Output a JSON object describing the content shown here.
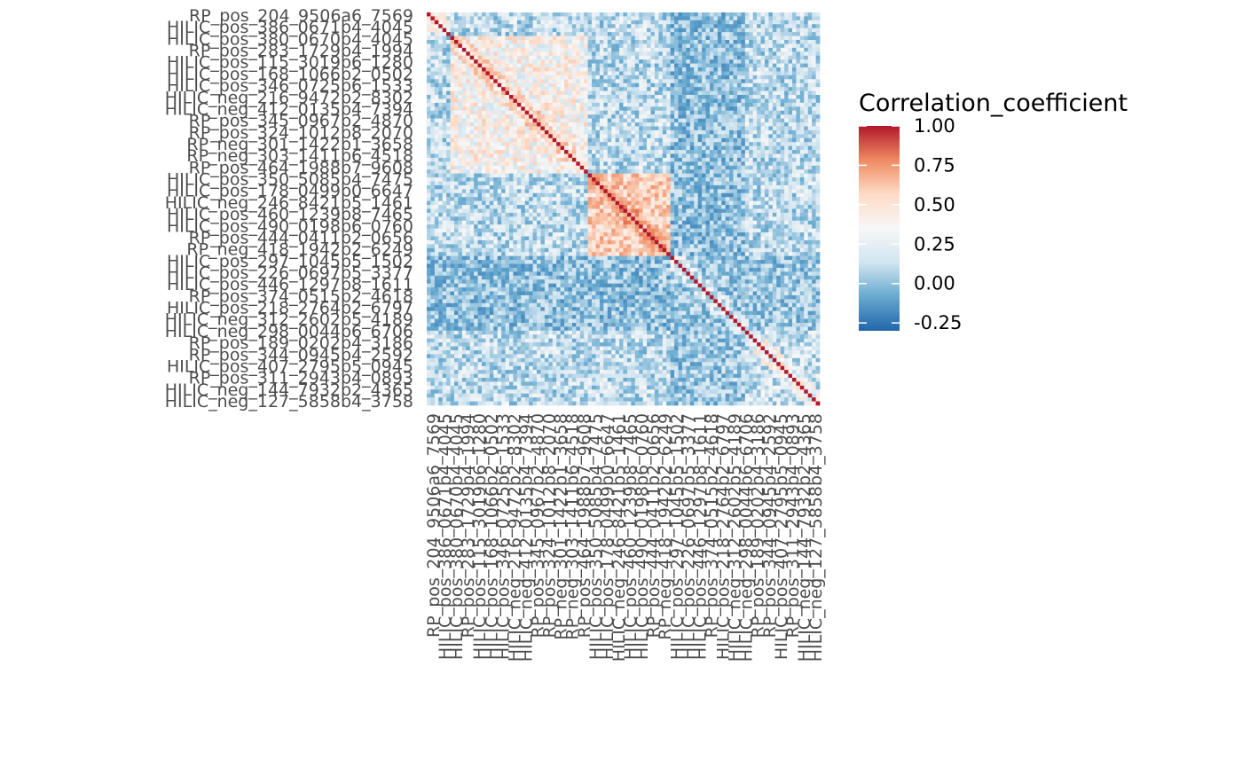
{
  "chart_data": {
    "type": "heatmap",
    "matrix_size": 100,
    "visible_row_labels": [
      "RP_pos_204_9506a6_7569",
      "HILIC_pos_386_0671b4_4045",
      "HILIC_pos_380_0670b4_4045",
      "RP_pos_283_1729b4_1994",
      "HILIC_pos_115_3019b6_1280",
      "HILIC_pos_168_1066b2_0502",
      "HILIC_pos_346_0725b6_1533",
      "HILIC_neg_216_9472b2_8302",
      "HILIC_neg_412_0135b4_7394",
      "RP_pos_345_0967b2_4870",
      "RP_pos_324_1012b8_2070",
      "RP_neg_301_1422b1_3658",
      "RP_neg_303_1411b6_4518",
      "RP_pos_464_1988b7_9608",
      "HILIC_pos_350_5085b4_7475",
      "HILIC_pos_178_0499b0_6647",
      "HILIC_neg_246_8421b5_1461",
      "HILIC_pos_460_1239b8_7465",
      "HILIC_pos_490_0198b6_0760",
      "RP_pos_444_0411b2_0656",
      "RP_neg_418_1942b2_6249",
      "HILIC_pos_297_1045b5_1502",
      "HILIC_pos_226_0697b5_3377",
      "HILIC_pos_446_1297b8_1611",
      "RP_pos_374_0515b2_4618",
      "HILIC_pos_218_2764b2_6797",
      "HILIC_neg_312_2602b5_4189",
      "HILIC_neg_298_0044b6_6706",
      "RP_pos_189_0202b4_3186",
      "RP_pos_344_0945b4_2592",
      "HILIC_pos_407_2795b5_0945",
      "RP_pos_311_2943b4_0893",
      "HILIC_neg_144_7932b2_4365",
      "HILIC_neg_127_5858b4_3758"
    ],
    "visible_col_labels": [
      "RP_pos_204_9506a6_7569",
      "HILIC_pos_386_0671b4_4045",
      "HILIC_pos_380_0670b4_4045",
      "RP_pos_283_1729b4_1994",
      "HILIC_pos_115_3019b6_1280",
      "HILIC_pos_168_1066b2_0502",
      "HILIC_pos_346_0725b6_1533",
      "HILIC_neg_216_9472b2_8302",
      "HILIC_neg_412_0135b4_7394",
      "RP_pos_345_0967b2_4870",
      "RP_pos_324_1012b8_2070",
      "RP_neg_301_1422b1_3658",
      "RP_neg_303_1411b6_4518",
      "RP_pos_464_1988b7_9608",
      "HILIC_pos_350_5085b4_7475",
      "HILIC_pos_178_0499b0_6647",
      "HILIC_neg_246_8421b5_1461",
      "HILIC_pos_460_1239b8_7465",
      "HILIC_pos_490_0198b6_0760",
      "RP_pos_444_0411b2_0656",
      "RP_neg_418_1942b2_6249",
      "HILIC_pos_297_1045b5_1502",
      "HILIC_pos_226_0697b5_3377",
      "HILIC_pos_446_1297b8_1611",
      "RP_pos_374_0515b2_4618",
      "HILIC_pos_218_2764b2_6797",
      "HILIC_neg_312_2602b5_4189",
      "HILIC_neg_298_0044b6_6706",
      "RP_pos_189_0202b4_3186",
      "RP_pos_344_0945b4_2592",
      "HILIC_pos_407_2795b5_0945",
      "RP_pos_311_2943b4_0893",
      "HILIC_neg_144_7932b2_4365",
      "HILIC_neg_127_5858b4_3758"
    ],
    "blocks": [
      {
        "from": 0,
        "to": 6,
        "base": 0.22
      },
      {
        "from": 6,
        "to": 41,
        "base": 0.32
      },
      {
        "from": 41,
        "to": 62,
        "base": 0.5
      },
      {
        "from": 62,
        "to": 100,
        "base": 0.15
      }
    ],
    "cross_block_base": 0.12,
    "weak_columns": [
      62,
      63,
      64,
      65,
      66,
      67,
      68,
      69,
      70,
      71,
      72,
      73,
      74,
      75,
      76,
      77,
      78,
      79,
      80
    ],
    "diagonal_value": 1.0,
    "legend": {
      "title": "Correlation_coefficient",
      "breaks": [
        1.0,
        0.75,
        0.5,
        0.25,
        0.0,
        -0.25
      ],
      "break_labels": [
        "1.00",
        "0.75",
        "0.50",
        "0.25",
        "0.00",
        "-0.25"
      ],
      "limits": [
        -0.3,
        1.0
      ]
    },
    "color_scale": {
      "low": "#2166ac",
      "mid_low": "#67a9cf",
      "light_low": "#d1e5f0",
      "white": "#f7f7f7",
      "light_high": "#fddbc7",
      "mid_high": "#ef8a62",
      "high": "#b2182b"
    }
  }
}
